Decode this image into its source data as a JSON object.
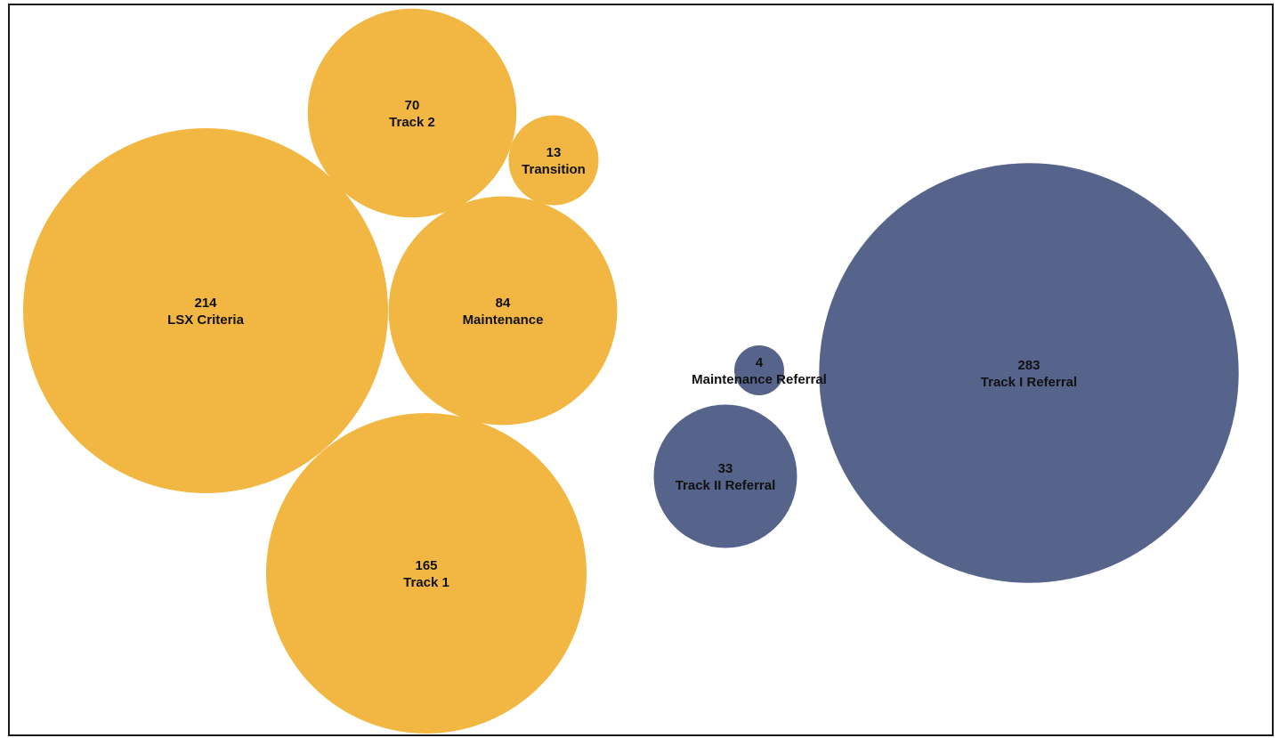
{
  "chart_data": {
    "type": "bubble",
    "title": "",
    "groups": [
      {
        "color": "#f2b742",
        "items": [
          {
            "label": "LSX Criteria",
            "value": 214
          },
          {
            "label": "Track 1",
            "value": 165
          },
          {
            "label": "Maintenance",
            "value": 84
          },
          {
            "label": "Track 2",
            "value": 70
          },
          {
            "label": "Transition",
            "value": 13
          }
        ]
      },
      {
        "color": "#56638b",
        "items": [
          {
            "label": "Track I Referral",
            "value": 283
          },
          {
            "label": "Track II Referral",
            "value": 33
          },
          {
            "label": "Maintenance Referral",
            "value": 4
          }
        ]
      }
    ]
  }
}
